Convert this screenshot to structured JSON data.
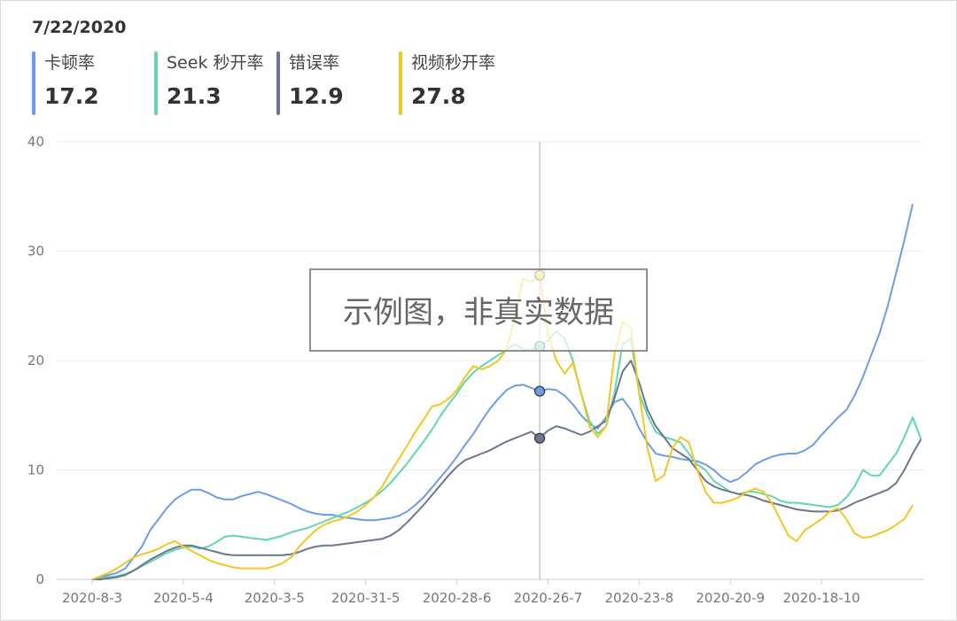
{
  "header": {
    "date": "7/22/2020"
  },
  "legend": [
    {
      "label": "卡顿率",
      "value": "17.2",
      "color": "#6c9bea"
    },
    {
      "label": "Seek 秒开率",
      "value": "21.3",
      "color": "#62d6ad"
    },
    {
      "label": "错误率",
      "value": "12.9",
      "color": "#6b7790"
    },
    {
      "label": "视频秒开率",
      "value": "27.8",
      "color": "#f4c623"
    }
  ],
  "watermark": "示例图，非真实数据",
  "chart_data": {
    "type": "line",
    "ylim": [
      0,
      40
    ],
    "yticks": [
      0,
      10,
      20,
      30,
      40
    ],
    "xlim": [
      0,
      99
    ],
    "x_tick_positions": [
      0,
      11,
      22,
      33,
      44,
      55,
      66,
      77,
      88
    ],
    "x_tick_labels": [
      "2020-8-3",
      "2020-5-4",
      "2020-3-5",
      "2020-31-5",
      "2020-28-6",
      "2020-26-7",
      "2020-23-8",
      "2020-20-9",
      "2020-18-10"
    ],
    "crosshair_index": 54,
    "grid": true,
    "series": [
      {
        "name": "卡顿率",
        "color": "#6c9bea",
        "values": [
          0,
          0.2,
          0.4,
          0.6,
          1.0,
          2.0,
          3.0,
          4.5,
          5.5,
          6.5,
          7.3,
          7.8,
          8.2,
          8.2,
          7.9,
          7.5,
          7.3,
          7.3,
          7.6,
          7.8,
          8.0,
          7.8,
          7.5,
          7.2,
          6.9,
          6.5,
          6.2,
          6.0,
          5.9,
          5.9,
          5.7,
          5.6,
          5.5,
          5.4,
          5.4,
          5.5,
          5.6,
          5.8,
          6.2,
          6.8,
          7.5,
          8.4,
          9.3,
          10.2,
          11.2,
          12.3,
          13.3,
          14.5,
          15.6,
          16.5,
          17.3,
          17.7,
          17.8,
          17.5,
          17.2,
          17.4,
          17.3,
          16.8,
          16.0,
          15.0,
          14.2,
          13.8,
          14.8,
          16.2,
          16.5,
          15.5,
          13.8,
          12.5,
          11.5,
          11.3,
          11.2,
          11.0,
          10.9,
          10.8,
          10.5,
          10.0,
          9.3,
          8.9,
          9.2,
          9.8,
          10.5,
          10.9,
          11.2,
          11.4,
          11.5,
          11.5,
          11.8,
          12.3,
          13.2,
          14.0,
          14.8,
          15.5,
          16.8,
          18.5,
          20.5,
          22.5,
          25.0,
          28.0,
          31.0,
          34.3
        ]
      },
      {
        "name": "Seek 秒开率",
        "color": "#62d6ad",
        "values": [
          0,
          0.1,
          0.2,
          0.3,
          0.5,
          0.8,
          1.2,
          1.6,
          2.0,
          2.4,
          2.7,
          2.9,
          3.0,
          2.8,
          3.0,
          3.4,
          3.9,
          4.0,
          3.9,
          3.8,
          3.7,
          3.6,
          3.8,
          4.0,
          4.3,
          4.5,
          4.7,
          5.0,
          5.3,
          5.6,
          5.9,
          6.2,
          6.6,
          7.0,
          7.5,
          8.1,
          8.8,
          9.7,
          10.6,
          11.6,
          12.6,
          13.7,
          14.9,
          16.0,
          17.0,
          18.1,
          18.9,
          19.5,
          20.0,
          20.5,
          21.0,
          21.5,
          21.0,
          21.0,
          21.3,
          21.8,
          22.7,
          22.0,
          20.0,
          17.0,
          14.5,
          13.3,
          14.0,
          17.0,
          21.5,
          22.0,
          17.0,
          15.0,
          13.5,
          13.0,
          12.8,
          12.5,
          11.5,
          10.5,
          10.0,
          9.0,
          8.5,
          8.0,
          7.8,
          8.0,
          8.0,
          7.8,
          7.6,
          7.2,
          7.0,
          7.0,
          6.9,
          6.8,
          6.7,
          6.6,
          6.8,
          7.5,
          8.5,
          10.0,
          9.5,
          9.5,
          10.5,
          11.5,
          13.0,
          14.8,
          12.8
        ]
      },
      {
        "name": "错误率",
        "color": "#6b7790",
        "values": [
          0,
          0,
          0.1,
          0.2,
          0.4,
          0.8,
          1.3,
          1.8,
          2.2,
          2.6,
          2.9,
          3.1,
          3.1,
          2.9,
          2.7,
          2.5,
          2.3,
          2.2,
          2.2,
          2.2,
          2.2,
          2.2,
          2.2,
          2.2,
          2.3,
          2.5,
          2.8,
          3.0,
          3.1,
          3.1,
          3.2,
          3.3,
          3.4,
          3.5,
          3.6,
          3.7,
          4.0,
          4.5,
          5.2,
          6.0,
          6.8,
          7.7,
          8.6,
          9.5,
          10.3,
          10.9,
          11.2,
          11.5,
          11.8,
          12.2,
          12.6,
          12.9,
          13.2,
          13.5,
          12.9,
          13.6,
          14.0,
          13.8,
          13.5,
          13.2,
          13.5,
          14.0,
          14.5,
          16.5,
          19.0,
          20.0,
          18.0,
          15.5,
          14.0,
          13.0,
          12.0,
          11.5,
          11.0,
          10.0,
          9.0,
          8.5,
          8.2,
          8.0,
          7.8,
          7.7,
          7.5,
          7.2,
          7.0,
          6.8,
          6.6,
          6.4,
          6.3,
          6.2,
          6.2,
          6.2,
          6.3,
          6.6,
          7.0,
          7.3,
          7.6,
          7.9,
          8.2,
          8.8,
          10.0,
          11.5,
          12.8
        ]
      },
      {
        "name": "视频秒开率",
        "color": "#f4c623",
        "values": [
          0,
          0.3,
          0.6,
          1.0,
          1.5,
          2.0,
          2.3,
          2.5,
          2.8,
          3.2,
          3.5,
          3.0,
          2.6,
          2.2,
          1.8,
          1.5,
          1.3,
          1.1,
          1.0,
          1.0,
          1.0,
          1.0,
          1.2,
          1.5,
          2.0,
          3.0,
          3.8,
          4.5,
          5.0,
          5.3,
          5.5,
          5.8,
          6.2,
          6.8,
          7.5,
          8.5,
          9.8,
          11.0,
          12.2,
          13.5,
          14.6,
          15.8,
          16.0,
          16.5,
          17.3,
          18.5,
          19.5,
          19.2,
          19.5,
          20.0,
          21.0,
          24.0,
          27.5,
          27.2,
          27.8,
          22.5,
          20.0,
          18.8,
          19.8,
          17.0,
          14.0,
          13.0,
          14.0,
          20.5,
          23.5,
          23.0,
          17.0,
          12.0,
          9.0,
          9.5,
          12.0,
          13.0,
          12.5,
          10.0,
          8.0,
          7.0,
          7.0,
          7.2,
          7.5,
          8.0,
          8.3,
          8.0,
          7.0,
          5.5,
          4.0,
          3.5,
          4.5,
          5.0,
          5.5,
          6.2,
          6.5,
          5.5,
          4.2,
          3.8,
          3.9,
          4.2,
          4.5,
          5.0,
          5.5,
          6.8
        ]
      }
    ]
  }
}
